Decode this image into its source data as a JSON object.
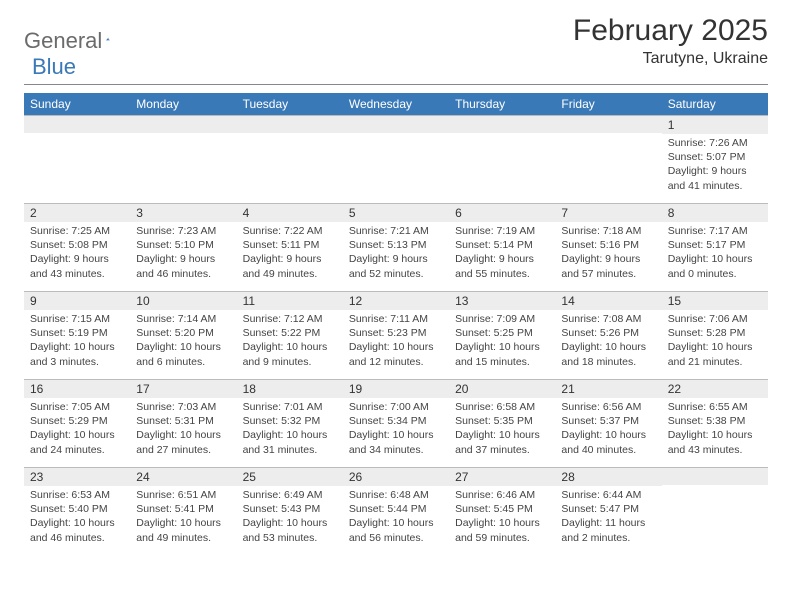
{
  "logo": {
    "text1": "General",
    "text2": "Blue"
  },
  "title": "February 2025",
  "location": "Tarutyne, Ukraine",
  "colors": {
    "header_bg": "#3a79b7",
    "header_text": "#ffffff",
    "daynum_bg": "#ededed",
    "text": "#333333",
    "logo_gray": "#6b6b6b",
    "logo_blue": "#3a79b7"
  },
  "weekdays": [
    "Sunday",
    "Monday",
    "Tuesday",
    "Wednesday",
    "Thursday",
    "Friday",
    "Saturday"
  ],
  "weeks": [
    [
      null,
      null,
      null,
      null,
      null,
      null,
      {
        "n": "1",
        "sr": "7:26 AM",
        "ss": "5:07 PM",
        "dl": "9 hours and 41 minutes."
      }
    ],
    [
      {
        "n": "2",
        "sr": "7:25 AM",
        "ss": "5:08 PM",
        "dl": "9 hours and 43 minutes."
      },
      {
        "n": "3",
        "sr": "7:23 AM",
        "ss": "5:10 PM",
        "dl": "9 hours and 46 minutes."
      },
      {
        "n": "4",
        "sr": "7:22 AM",
        "ss": "5:11 PM",
        "dl": "9 hours and 49 minutes."
      },
      {
        "n": "5",
        "sr": "7:21 AM",
        "ss": "5:13 PM",
        "dl": "9 hours and 52 minutes."
      },
      {
        "n": "6",
        "sr": "7:19 AM",
        "ss": "5:14 PM",
        "dl": "9 hours and 55 minutes."
      },
      {
        "n": "7",
        "sr": "7:18 AM",
        "ss": "5:16 PM",
        "dl": "9 hours and 57 minutes."
      },
      {
        "n": "8",
        "sr": "7:17 AM",
        "ss": "5:17 PM",
        "dl": "10 hours and 0 minutes."
      }
    ],
    [
      {
        "n": "9",
        "sr": "7:15 AM",
        "ss": "5:19 PM",
        "dl": "10 hours and 3 minutes."
      },
      {
        "n": "10",
        "sr": "7:14 AM",
        "ss": "5:20 PM",
        "dl": "10 hours and 6 minutes."
      },
      {
        "n": "11",
        "sr": "7:12 AM",
        "ss": "5:22 PM",
        "dl": "10 hours and 9 minutes."
      },
      {
        "n": "12",
        "sr": "7:11 AM",
        "ss": "5:23 PM",
        "dl": "10 hours and 12 minutes."
      },
      {
        "n": "13",
        "sr": "7:09 AM",
        "ss": "5:25 PM",
        "dl": "10 hours and 15 minutes."
      },
      {
        "n": "14",
        "sr": "7:08 AM",
        "ss": "5:26 PM",
        "dl": "10 hours and 18 minutes."
      },
      {
        "n": "15",
        "sr": "7:06 AM",
        "ss": "5:28 PM",
        "dl": "10 hours and 21 minutes."
      }
    ],
    [
      {
        "n": "16",
        "sr": "7:05 AM",
        "ss": "5:29 PM",
        "dl": "10 hours and 24 minutes."
      },
      {
        "n": "17",
        "sr": "7:03 AM",
        "ss": "5:31 PM",
        "dl": "10 hours and 27 minutes."
      },
      {
        "n": "18",
        "sr": "7:01 AM",
        "ss": "5:32 PM",
        "dl": "10 hours and 31 minutes."
      },
      {
        "n": "19",
        "sr": "7:00 AM",
        "ss": "5:34 PM",
        "dl": "10 hours and 34 minutes."
      },
      {
        "n": "20",
        "sr": "6:58 AM",
        "ss": "5:35 PM",
        "dl": "10 hours and 37 minutes."
      },
      {
        "n": "21",
        "sr": "6:56 AM",
        "ss": "5:37 PM",
        "dl": "10 hours and 40 minutes."
      },
      {
        "n": "22",
        "sr": "6:55 AM",
        "ss": "5:38 PM",
        "dl": "10 hours and 43 minutes."
      }
    ],
    [
      {
        "n": "23",
        "sr": "6:53 AM",
        "ss": "5:40 PM",
        "dl": "10 hours and 46 minutes."
      },
      {
        "n": "24",
        "sr": "6:51 AM",
        "ss": "5:41 PM",
        "dl": "10 hours and 49 minutes."
      },
      {
        "n": "25",
        "sr": "6:49 AM",
        "ss": "5:43 PM",
        "dl": "10 hours and 53 minutes."
      },
      {
        "n": "26",
        "sr": "6:48 AM",
        "ss": "5:44 PM",
        "dl": "10 hours and 56 minutes."
      },
      {
        "n": "27",
        "sr": "6:46 AM",
        "ss": "5:45 PM",
        "dl": "10 hours and 59 minutes."
      },
      {
        "n": "28",
        "sr": "6:44 AM",
        "ss": "5:47 PM",
        "dl": "11 hours and 2 minutes."
      },
      null
    ]
  ],
  "labels": {
    "sunrise": "Sunrise:",
    "sunset": "Sunset:",
    "daylight": "Daylight:"
  }
}
